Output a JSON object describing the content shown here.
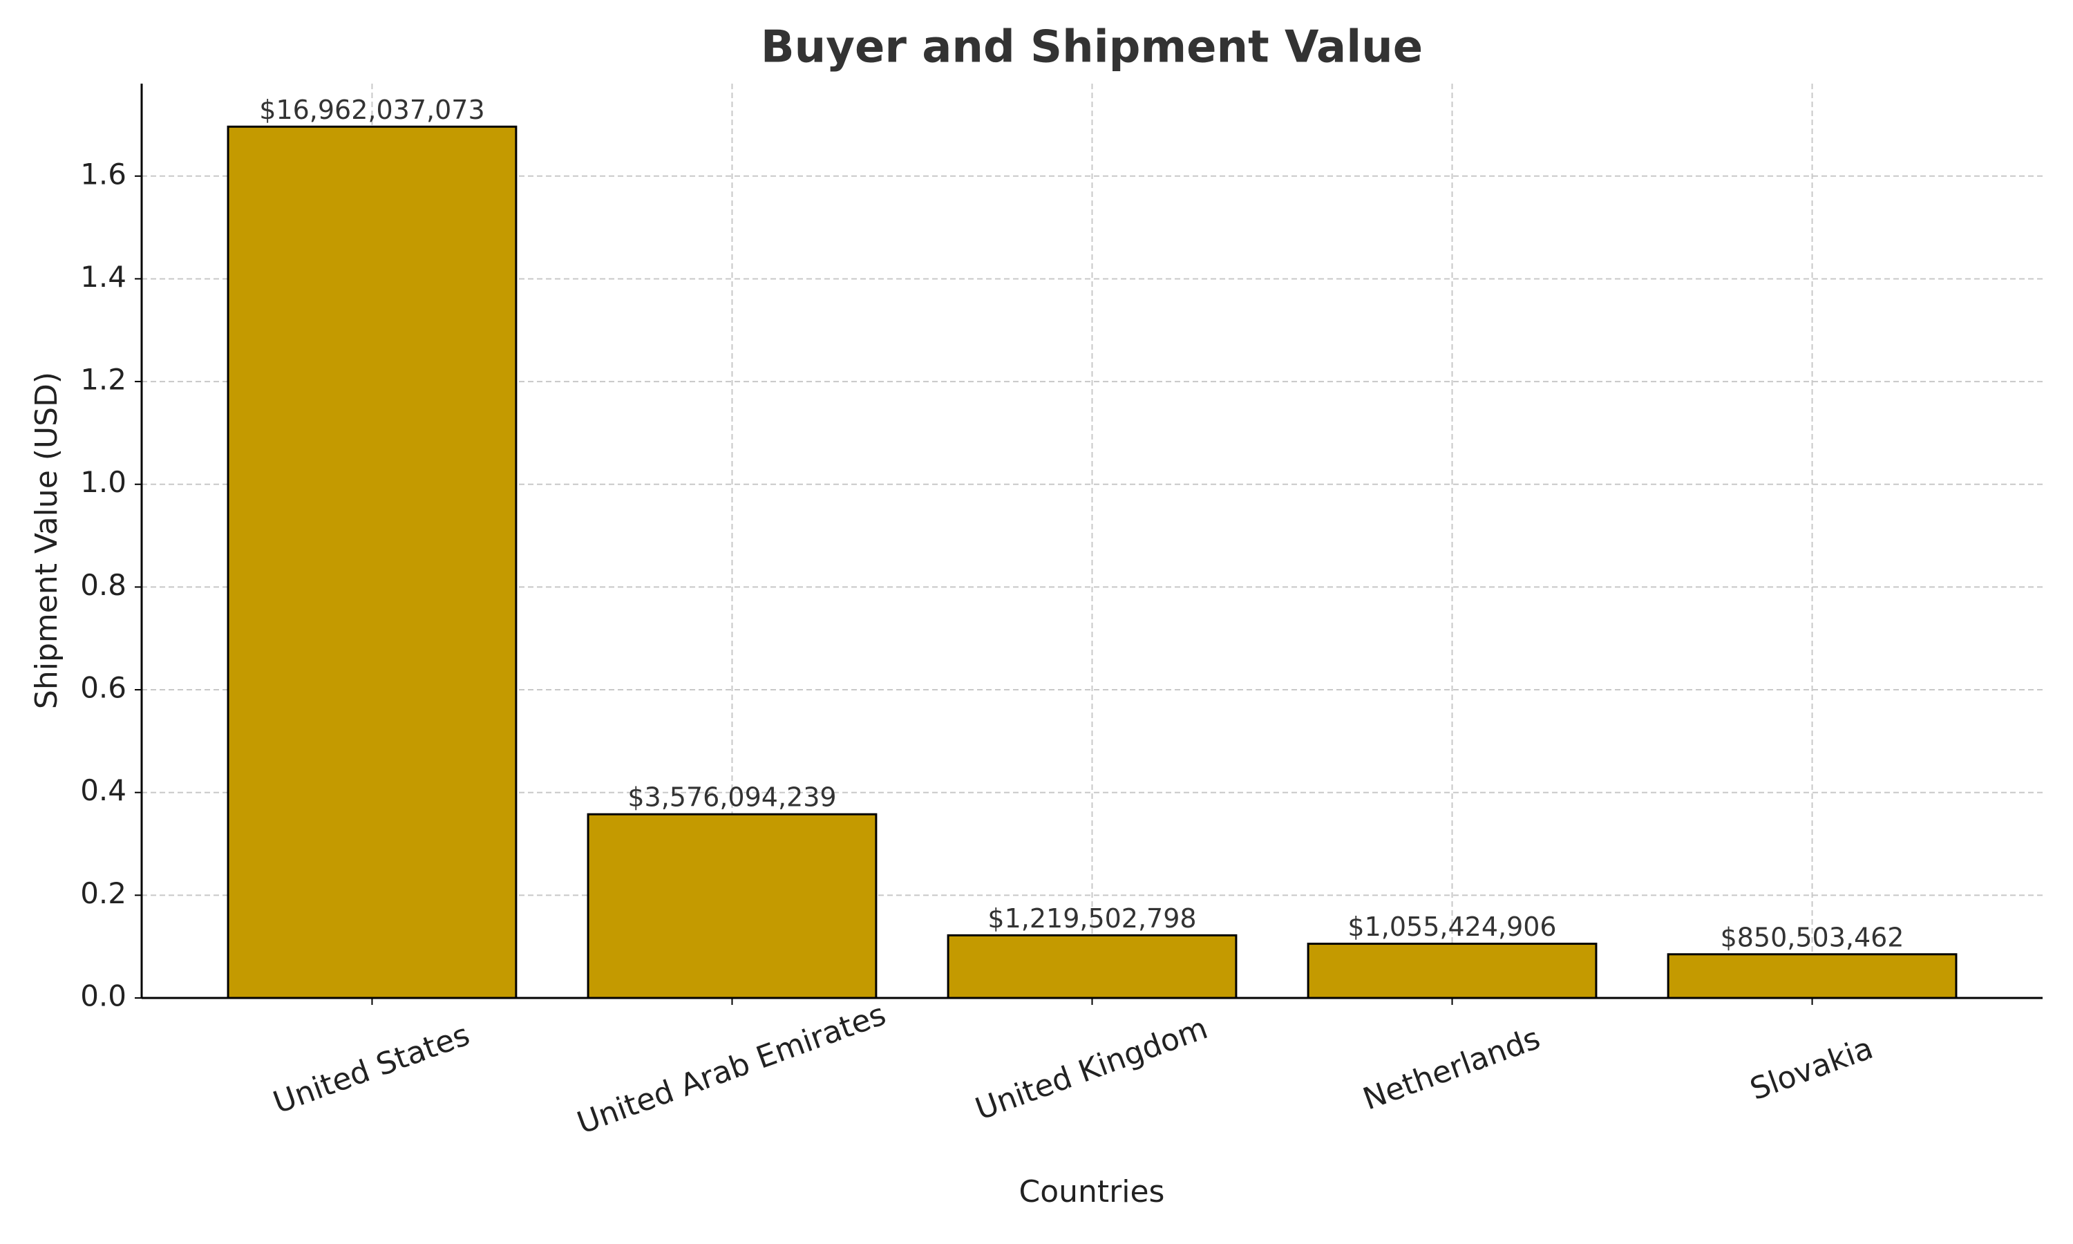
{
  "chart_data": {
    "type": "bar",
    "title": "Buyer and Shipment Value",
    "x_label": "Countries",
    "y_label": "Shipment Value (USD)",
    "categories": [
      "United States",
      "United Arab Emirates",
      "United Kingdom",
      "Netherlands",
      "Slovakia"
    ],
    "values": [
      1.6962037073,
      0.3576094239,
      0.1219502798,
      0.1055424906,
      0.0850503462
    ],
    "value_labels": [
      "$16,962,037,073",
      "$3,576,094,239",
      "$1,219,502,798",
      "$1,055,424,906",
      "$850,503,462"
    ],
    "color": "#c49a00",
    "edge_color": "#000000",
    "ylim": [
      0,
      1.78
    ],
    "yticks": [
      {
        "value": 0,
        "label": "0.0"
      },
      0.2,
      0.4,
      0.6,
      0.8,
      {
        "value": 1,
        "label": "1.0"
      },
      1.2,
      1.4,
      1.6
    ],
    "grid": true
  }
}
